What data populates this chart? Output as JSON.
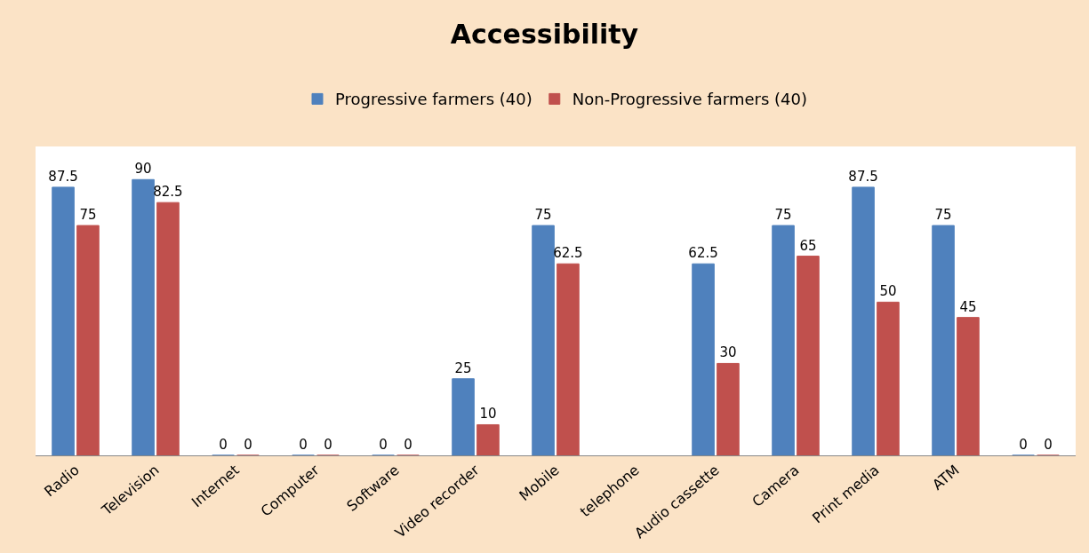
{
  "chart_data": {
    "type": "bar",
    "title": "Accessibility",
    "categories": [
      "Radio",
      "Television",
      "Internet",
      "Computer",
      "Software",
      "Video recorder",
      "Mobile",
      "telephone",
      "Audio cassette",
      "Camera",
      "Print media",
      "ATM",
      null
    ],
    "series": [
      {
        "name": "Progressive farmers (40)",
        "color": "#4f81bd",
        "values": [
          87.5,
          90,
          0,
          0,
          0,
          25,
          75,
          null,
          62.5,
          75,
          87.5,
          75,
          0
        ]
      },
      {
        "name": "Non-Progressive farmers (40)",
        "color": "#c0504d",
        "values": [
          75,
          82.5,
          0,
          0,
          0,
          10,
          62.5,
          null,
          30,
          65,
          50,
          45,
          0
        ]
      }
    ],
    "data_labels": true,
    "legend": "top"
  }
}
